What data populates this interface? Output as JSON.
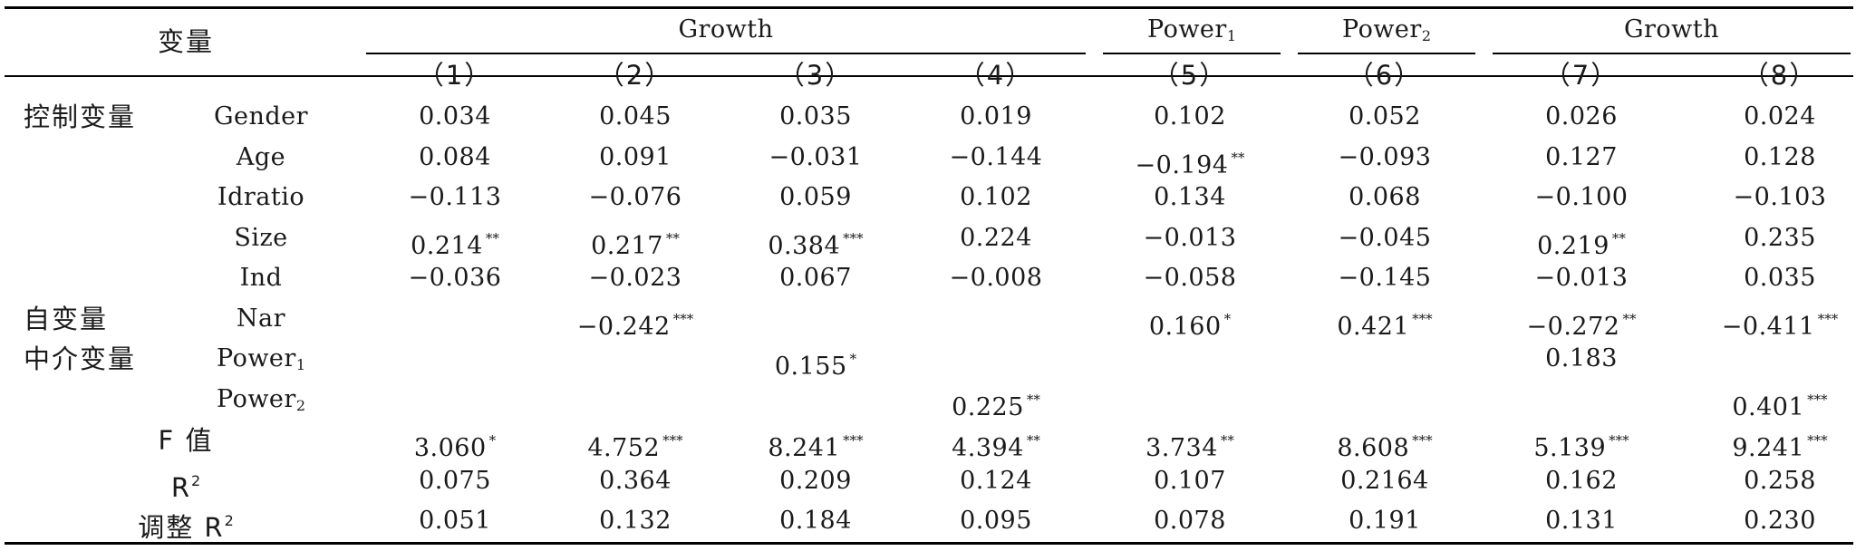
{
  "table": {
    "header": {
      "corner_label": "变量",
      "groups": [
        {
          "label": "Growth",
          "sub": ""
        },
        {
          "label": "Power",
          "sub": "1"
        },
        {
          "label": "Power",
          "sub": "2"
        },
        {
          "label": "Growth",
          "sub": ""
        }
      ],
      "columns": [
        "（1）",
        "（2）",
        "（3）",
        "（4）",
        "（5）",
        "（6）",
        "（7）",
        "（8）"
      ]
    },
    "rows": [
      {
        "category": "控制变量",
        "var": "Gender",
        "var_sub": "",
        "cells": [
          {
            "v": "0.034",
            "s": ""
          },
          {
            "v": "0.045",
            "s": ""
          },
          {
            "v": "0.035",
            "s": ""
          },
          {
            "v": "0.019",
            "s": ""
          },
          {
            "v": "0.102",
            "s": ""
          },
          {
            "v": "0.052",
            "s": ""
          },
          {
            "v": "0.026",
            "s": ""
          },
          {
            "v": "0.024",
            "s": ""
          }
        ]
      },
      {
        "category": "",
        "var": "Age",
        "var_sub": "",
        "cells": [
          {
            "v": "0.084",
            "s": ""
          },
          {
            "v": "0.091",
            "s": ""
          },
          {
            "v": "−0.031",
            "s": ""
          },
          {
            "v": "−0.144",
            "s": ""
          },
          {
            "v": "−0.194",
            "s": "**"
          },
          {
            "v": "−0.093",
            "s": ""
          },
          {
            "v": "0.127",
            "s": ""
          },
          {
            "v": "0.128",
            "s": ""
          }
        ]
      },
      {
        "category": "",
        "var": "Idratio",
        "var_sub": "",
        "cells": [
          {
            "v": "−0.113",
            "s": ""
          },
          {
            "v": "−0.076",
            "s": ""
          },
          {
            "v": "0.059",
            "s": ""
          },
          {
            "v": "0.102",
            "s": ""
          },
          {
            "v": "0.134",
            "s": ""
          },
          {
            "v": "0.068",
            "s": ""
          },
          {
            "v": "−0.100",
            "s": ""
          },
          {
            "v": "−0.103",
            "s": ""
          }
        ]
      },
      {
        "category": "",
        "var": "Size",
        "var_sub": "",
        "cells": [
          {
            "v": "0.214",
            "s": "**"
          },
          {
            "v": "0.217",
            "s": "**"
          },
          {
            "v": "0.384",
            "s": "***"
          },
          {
            "v": "0.224",
            "s": ""
          },
          {
            "v": "−0.013",
            "s": ""
          },
          {
            "v": "−0.045",
            "s": ""
          },
          {
            "v": "0.219",
            "s": "**"
          },
          {
            "v": "0.235",
            "s": ""
          }
        ]
      },
      {
        "category": "",
        "var": "Ind",
        "var_sub": "",
        "cells": [
          {
            "v": "−0.036",
            "s": ""
          },
          {
            "v": "−0.023",
            "s": ""
          },
          {
            "v": "0.067",
            "s": ""
          },
          {
            "v": "−0.008",
            "s": ""
          },
          {
            "v": "−0.058",
            "s": ""
          },
          {
            "v": "−0.145",
            "s": ""
          },
          {
            "v": "−0.013",
            "s": ""
          },
          {
            "v": "0.035",
            "s": ""
          }
        ]
      },
      {
        "category": "自变量",
        "var": "Nar",
        "var_sub": "",
        "cells": [
          {
            "v": "",
            "s": ""
          },
          {
            "v": "−0.242",
            "s": "***"
          },
          {
            "v": "",
            "s": ""
          },
          {
            "v": "",
            "s": ""
          },
          {
            "v": "0.160",
            "s": "*"
          },
          {
            "v": "0.421",
            "s": "***"
          },
          {
            "v": "−0.272",
            "s": "**"
          },
          {
            "v": "−0.411",
            "s": "***"
          }
        ]
      },
      {
        "category": "中介变量",
        "var": "Power",
        "var_sub": "1",
        "cells": [
          {
            "v": "",
            "s": ""
          },
          {
            "v": "",
            "s": ""
          },
          {
            "v": "0.155",
            "s": "*"
          },
          {
            "v": "",
            "s": ""
          },
          {
            "v": "",
            "s": ""
          },
          {
            "v": "",
            "s": ""
          },
          {
            "v": "0.183",
            "s": ""
          },
          {
            "v": "",
            "s": ""
          }
        ]
      },
      {
        "category": "",
        "var": "Power",
        "var_sub": "2",
        "cells": [
          {
            "v": "",
            "s": ""
          },
          {
            "v": "",
            "s": ""
          },
          {
            "v": "",
            "s": ""
          },
          {
            "v": "0.225",
            "s": "**"
          },
          {
            "v": "",
            "s": ""
          },
          {
            "v": "",
            "s": ""
          },
          {
            "v": "",
            "s": ""
          },
          {
            "v": "0.401",
            "s": "***"
          }
        ]
      }
    ],
    "stats": [
      {
        "label": "F 值",
        "label_sup": "",
        "cells": [
          {
            "v": "3.060",
            "s": "*"
          },
          {
            "v": "4.752",
            "s": "***"
          },
          {
            "v": "8.241",
            "s": "***"
          },
          {
            "v": "4.394",
            "s": "**"
          },
          {
            "v": "3.734",
            "s": "**"
          },
          {
            "v": "8.608",
            "s": "***"
          },
          {
            "v": "5.139",
            "s": "***"
          },
          {
            "v": "9.241",
            "s": "***"
          }
        ]
      },
      {
        "label": "R",
        "label_sup": "2",
        "cells": [
          {
            "v": "0.075",
            "s": ""
          },
          {
            "v": "0.364",
            "s": ""
          },
          {
            "v": "0.209",
            "s": ""
          },
          {
            "v": "0.124",
            "s": ""
          },
          {
            "v": "0.107",
            "s": ""
          },
          {
            "v": "0.2164",
            "s": ""
          },
          {
            "v": "0.162",
            "s": ""
          },
          {
            "v": "0.258",
            "s": ""
          }
        ]
      },
      {
        "label": "调整 R",
        "label_sup": "2",
        "cells": [
          {
            "v": "0.051",
            "s": ""
          },
          {
            "v": "0.132",
            "s": ""
          },
          {
            "v": "0.184",
            "s": ""
          },
          {
            "v": "0.095",
            "s": ""
          },
          {
            "v": "0.078",
            "s": ""
          },
          {
            "v": "0.191",
            "s": ""
          },
          {
            "v": "0.131",
            "s": ""
          },
          {
            "v": "0.230",
            "s": ""
          }
        ]
      }
    ]
  }
}
